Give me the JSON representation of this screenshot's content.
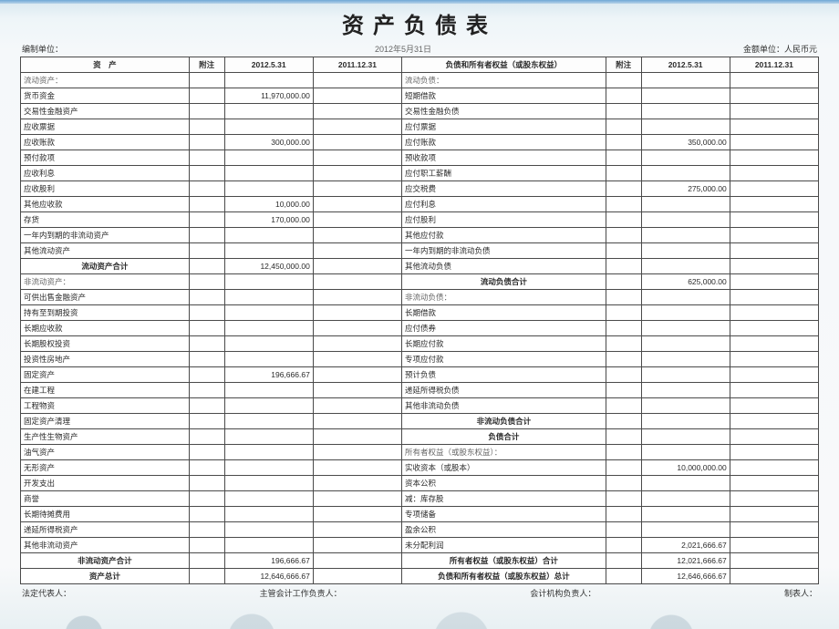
{
  "title": "资产负债表",
  "meta": {
    "left": "编制单位：",
    "center": "2012年5月31日",
    "right": "金额单位：人民币元"
  },
  "columns": {
    "asset_label": "资　产",
    "note_l": "附注",
    "c1": "2012.5.31",
    "c2": "2011.12.31",
    "liab_label": "负债和所有者权益（或股东权益）",
    "note_r": "附注",
    "c3": "2012.5.31",
    "c4": "2011.12.31"
  },
  "rows": [
    {
      "a": "流动资产：",
      "sec_l": true,
      "l": "流动负债：",
      "sec_r": true
    },
    {
      "a": "货币资金",
      "v1": "11,970,000.00",
      "l": "短期借款"
    },
    {
      "a": "交易性金融资产",
      "l": "交易性金融负债"
    },
    {
      "a": "应收票据",
      "l": "应付票据"
    },
    {
      "a": "应收账款",
      "v1": "300,000.00",
      "l": "应付账款",
      "v3": "350,000.00"
    },
    {
      "a": "预付款项",
      "l": "预收款项"
    },
    {
      "a": "应收利息",
      "l": "应付职工薪酬"
    },
    {
      "a": "应收股利",
      "l": "应交税费",
      "v3": "275,000.00"
    },
    {
      "a": "其他应收款",
      "v1": "10,000.00",
      "l": "应付利息"
    },
    {
      "a": "存货",
      "v1": "170,000.00",
      "l": "应付股利"
    },
    {
      "a": "一年内到期的非流动资产",
      "l": "其他应付款"
    },
    {
      "a": "其他流动资产",
      "l": "一年内到期的非流动负债"
    },
    {
      "a": "流动资产合计",
      "cen_l": true,
      "v1": "12,450,000.00",
      "l": "其他流动负债"
    },
    {
      "a": "非流动资产：",
      "sec_l": true,
      "l": "流动负债合计",
      "cen_r": true,
      "v3": "625,000.00"
    },
    {
      "a": "可供出售金融资产",
      "l": "非流动负债：",
      "sec_r": true
    },
    {
      "a": "持有至到期投资",
      "l": "长期借款"
    },
    {
      "a": "长期应收款",
      "l": "应付债券"
    },
    {
      "a": "长期股权投资",
      "l": "长期应付款"
    },
    {
      "a": "投资性房地产",
      "l": "专项应付款"
    },
    {
      "a": "固定资产",
      "v1": "196,666.67",
      "l": "预计负债"
    },
    {
      "a": "在建工程",
      "l": "递延所得税负债"
    },
    {
      "a": "工程物资",
      "l": "其他非流动负债"
    },
    {
      "a": "固定资产清理",
      "l": "非流动负债合计",
      "cen_r": true
    },
    {
      "a": "生产性生物资产",
      "l": "负债合计",
      "cen_r": true
    },
    {
      "a": "油气资产",
      "l": "所有者权益（或股东权益）：",
      "sec_r": true
    },
    {
      "a": "无形资产",
      "l": "实收资本（或股本）",
      "v3": "10,000,000.00"
    },
    {
      "a": "开发支出",
      "l": "资本公积"
    },
    {
      "a": "商誉",
      "l": "减：库存股"
    },
    {
      "a": "长期待摊费用",
      "l": "专项储备"
    },
    {
      "a": "递延所得税资产",
      "l": "盈余公积"
    },
    {
      "a": "其他非流动资产",
      "l": "未分配利润",
      "v3": "2,021,666.67"
    },
    {
      "a": "非流动资产合计",
      "cen_l": true,
      "v1": "196,666.67",
      "l": "所有者权益（或股东权益）合计",
      "cen_r": true,
      "v3": "12,021,666.67"
    },
    {
      "a": "资产总计",
      "cen_l": true,
      "v1": "12,646,666.67",
      "l": "负债和所有者权益（或股东权益）总计",
      "cen_r": true,
      "v3": "12,646,666.67"
    }
  ],
  "footer": {
    "f1": "法定代表人：",
    "f2": "主管会计工作负责人：",
    "f3": "会计机构负责人：",
    "f4": "制表人："
  },
  "style": {
    "col_widths_pct": [
      19,
      4,
      10,
      10,
      23,
      4,
      10,
      10
    ],
    "border_color": "#4a4a4a",
    "bg": "#ffffff",
    "title_fontsize": 24,
    "cell_fontsize": 8.5
  }
}
